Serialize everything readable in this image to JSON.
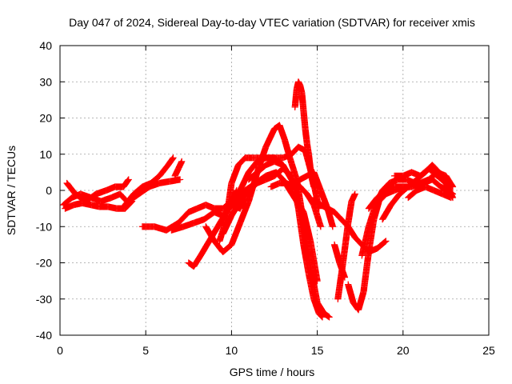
{
  "chart_data": {
    "type": "scatter",
    "title": "Day 047 of 2024, Sidereal Day-to-day VTEC variation (SDTVAR) for receiver xmis",
    "xlabel": "GPS time / hours",
    "ylabel": "SDTVAR / TECUs",
    "xlim": [
      0,
      25
    ],
    "ylim": [
      -40,
      40
    ],
    "xticks": [
      "0",
      "5",
      "10",
      "15",
      "20",
      "25"
    ],
    "yticks": [
      "-40",
      "-30",
      "-20",
      "-10",
      "0",
      "10",
      "20",
      "30",
      "40"
    ],
    "grid": true,
    "marker": "plus",
    "color": "#ff0000",
    "series": [
      {
        "x": [
          0.3,
          0.8,
          1.3,
          1.8,
          2.3,
          2.8,
          3.3,
          3.8,
          4.2
        ],
        "y": [
          -5,
          -4,
          -3.5,
          -4,
          -4.5,
          -4.5,
          -5,
          -5,
          -3
        ]
      },
      {
        "x": [
          0.2,
          0.7,
          1.2,
          1.8,
          2.4,
          3.0,
          3.5,
          3.9
        ],
        "y": [
          -4,
          -2,
          -1,
          -2,
          -3,
          -2,
          -1,
          -3
        ]
      },
      {
        "x": [
          0.4,
          0.9,
          1.5,
          2.1,
          2.7,
          3.2,
          3.7,
          4.0
        ],
        "y": [
          2,
          -1,
          -3,
          -1,
          0,
          1,
          1,
          3
        ]
      },
      {
        "x": [
          3.8,
          4.3,
          4.8,
          5.3,
          5.8,
          6.3,
          6.6
        ],
        "y": [
          -4,
          -1,
          1,
          2,
          4,
          7,
          9
        ]
      },
      {
        "x": [
          4.0,
          4.6,
          5.2,
          5.8,
          6.4,
          7.0
        ],
        "y": [
          -3,
          -1,
          1,
          2,
          2.5,
          3
        ]
      },
      {
        "x": [
          6.7,
          6.9,
          7.1
        ],
        "y": [
          4,
          6,
          8
        ]
      },
      {
        "x": [
          4.8,
          5.5,
          6.2,
          6.9,
          7.5,
          8.0,
          8.5,
          9.0,
          9.5,
          10.0,
          10.3
        ],
        "y": [
          -10,
          -10,
          -11,
          -9,
          -6,
          -5,
          -4,
          -5,
          -5,
          -3,
          0
        ]
      },
      {
        "x": [
          6.5,
          7.2,
          7.8,
          8.4,
          9.0,
          9.5,
          10.0,
          10.5,
          10.8
        ],
        "y": [
          -11,
          -10,
          -9,
          -8,
          -6,
          -7,
          -4,
          -5,
          -2
        ]
      },
      {
        "x": [
          7.5,
          7.8,
          8.2,
          8.7,
          9.2,
          9.7,
          10.2,
          10.6,
          11.0,
          11.5,
          12.0,
          12.5,
          13.0
        ],
        "y": [
          -20,
          -21,
          -18,
          -14,
          -10,
          -6,
          -3,
          1,
          5,
          8,
          9,
          9,
          7
        ]
      },
      {
        "x": [
          8.5,
          9.0,
          9.5,
          10.0,
          10.5,
          11.0,
          11.5,
          12.0,
          12.5,
          12.8,
          13.1,
          13.4,
          13.8,
          14.2,
          14.6,
          15.0,
          15.4,
          15.7
        ],
        "y": [
          -10,
          -14,
          -17,
          -15,
          -9,
          -3,
          5,
          12,
          17,
          18,
          14,
          9,
          3,
          -9,
          -21,
          -31,
          -34,
          -35
        ]
      },
      {
        "x": [
          9.3,
          9.7,
          10.0,
          10.4,
          10.8,
          11.2,
          11.8,
          12.4,
          13.0,
          13.5,
          13.9,
          14.3,
          14.7,
          15.1
        ],
        "y": [
          -14,
          -8,
          2,
          7,
          9,
          9,
          9,
          9,
          9,
          10,
          12,
          11,
          4,
          -5
        ]
      },
      {
        "x": [
          9.5,
          10.0,
          10.5,
          11.0,
          11.5,
          12.0,
          12.5,
          13.0,
          13.3,
          13.6,
          13.9,
          14.2,
          14.5,
          14.8,
          15.1,
          15.3
        ],
        "y": [
          -12,
          -7,
          -3,
          0,
          2,
          3,
          4,
          6,
          5,
          2,
          -5,
          -15,
          -23,
          -30,
          -34,
          -35
        ]
      },
      {
        "x": [
          10.2,
          10.8,
          11.4,
          12.0,
          12.6,
          13.0,
          13.4,
          13.8,
          14.2,
          14.6,
          15.0
        ],
        "y": [
          -3,
          0,
          2,
          4,
          5,
          3,
          0,
          -3,
          -6,
          -14,
          -25
        ]
      },
      {
        "x": [
          11.0,
          11.5,
          12.0,
          12.5,
          13.0,
          13.5,
          14.0,
          14.4,
          14.8,
          15.2
        ],
        "y": [
          3,
          5,
          7,
          8,
          7,
          3,
          1,
          -1,
          -4,
          -10
        ]
      },
      {
        "x": [
          12.3,
          12.8,
          13.2,
          13.6,
          14.0,
          14.4,
          14.8,
          15.2,
          15.6,
          15.9
        ],
        "y": [
          1,
          2,
          2,
          1,
          3,
          4,
          5,
          0,
          -5,
          -10
        ]
      },
      {
        "x": [
          13.7,
          13.8,
          13.9,
          14.0,
          14.1,
          14.2,
          14.3,
          14.4,
          14.5,
          14.6,
          14.7,
          14.8
        ],
        "y": [
          23,
          28,
          30,
          29,
          27,
          22,
          17,
          13,
          10,
          6,
          3,
          1
        ]
      },
      {
        "x": [
          14.8,
          15.2,
          15.6,
          16.0,
          16.4,
          16.8,
          17.2,
          17.6,
          18.0,
          18.5,
          19.0
        ],
        "y": [
          -2,
          -4,
          -5,
          -6,
          -8,
          -10,
          -13,
          -15,
          -17,
          -16,
          -14
        ]
      },
      {
        "x": [
          16.2,
          16.5,
          16.8,
          17.0,
          17.2
        ],
        "y": [
          -30,
          -20,
          -9,
          -3,
          -1
        ]
      },
      {
        "x": [
          16.0,
          16.3,
          16.6
        ],
        "y": [
          -15,
          -20,
          -24
        ]
      },
      {
        "x": [
          16.8,
          17.1,
          17.4,
          17.7,
          18.0,
          18.3,
          18.6,
          19.0,
          19.5,
          20.0
        ],
        "y": [
          -26,
          -31,
          -33,
          -28,
          -17,
          -8,
          -3,
          -1,
          0,
          1
        ]
      },
      {
        "x": [
          17.6,
          18.0,
          18.4,
          18.8,
          19.2,
          19.7,
          20.2,
          20.7,
          21.2,
          21.7,
          22.2,
          22.6,
          22.9
        ],
        "y": [
          -18,
          -10,
          -4,
          0,
          2,
          3,
          3,
          2,
          2,
          3,
          1,
          0,
          -1
        ]
      },
      {
        "x": [
          18.0,
          18.5,
          19.0,
          19.5,
          20.0,
          20.5,
          21.0,
          21.5,
          22.0,
          22.5,
          22.9
        ],
        "y": [
          -5,
          -2,
          0,
          1,
          1,
          1,
          2,
          3,
          5,
          4,
          1
        ]
      },
      {
        "x": [
          18.8,
          19.3,
          19.8,
          20.3,
          20.8,
          21.3,
          21.7,
          22.1,
          22.5,
          22.9
        ],
        "y": [
          -8,
          -4,
          -1,
          1,
          3,
          5,
          7,
          5,
          2,
          -2
        ]
      },
      {
        "x": [
          20.3,
          20.8,
          21.3,
          21.8,
          22.3,
          22.8
        ],
        "y": [
          -2,
          0,
          1,
          0,
          -1,
          -2
        ]
      },
      {
        "x": [
          19.5,
          20.0,
          20.5,
          21.0,
          21.5,
          22.0,
          22.5
        ],
        "y": [
          4,
          4,
          5,
          4,
          6,
          4,
          2
        ]
      }
    ]
  }
}
